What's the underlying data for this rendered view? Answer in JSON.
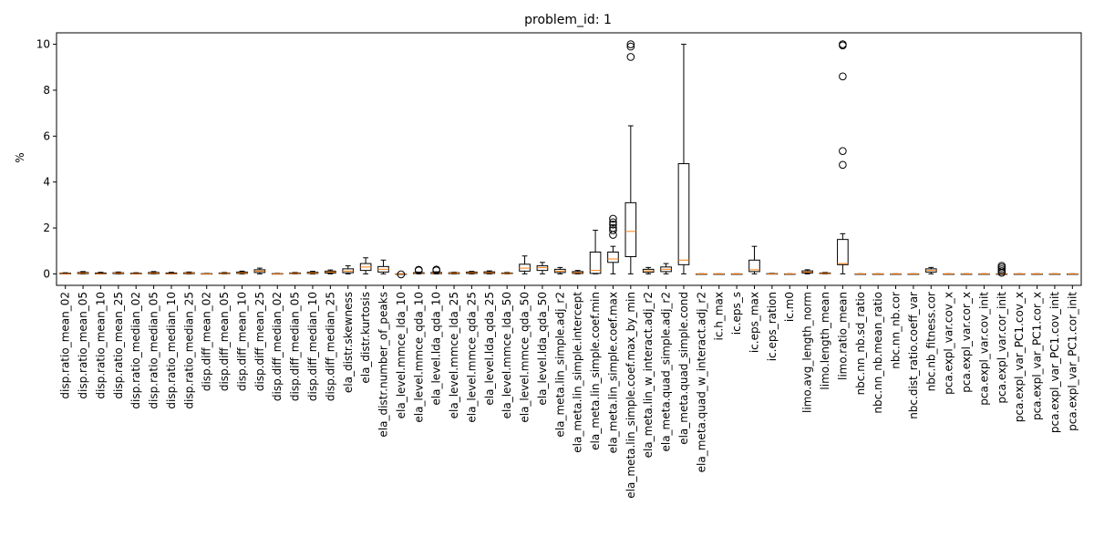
{
  "chart_data": {
    "type": "boxplot",
    "title": "problem_id: 1",
    "ylabel": "%",
    "xlabel": "",
    "ylim": [
      -0.5,
      10.5
    ],
    "yticks": [
      0,
      2,
      4,
      6,
      8,
      10
    ],
    "grid": false,
    "colors": {
      "box": "#000000",
      "median": "#ff7f0e",
      "flier": "#000000"
    },
    "categories": [
      "disp.ratio_mean_02",
      "disp.ratio_mean_05",
      "disp.ratio_mean_10",
      "disp.ratio_mean_25",
      "disp.ratio_median_02",
      "disp.ratio_median_05",
      "disp.ratio_median_10",
      "disp.ratio_median_25",
      "disp.diff_mean_02",
      "disp.diff_mean_05",
      "disp.diff_mean_10",
      "disp.diff_mean_25",
      "disp.diff_median_02",
      "disp.diff_median_05",
      "disp.diff_median_10",
      "disp.diff_median_25",
      "ela_distr.skewness",
      "ela_distr.kurtosis",
      "ela_distr.number_of_peaks",
      "ela_level.mmce_lda_10",
      "ela_level.mmce_qda_10",
      "ela_level.lda_qda_10",
      "ela_level.mmce_lda_25",
      "ela_level.mmce_qda_25",
      "ela_level.lda_qda_25",
      "ela_level.mmce_lda_50",
      "ela_level.mmce_qda_50",
      "ela_level.lda_qda_50",
      "ela_meta.lin_simple.adj_r2",
      "ela_meta.lin_simple.intercept",
      "ela_meta.lin_simple.coef.min",
      "ela_meta.lin_simple.coef.max",
      "ela_meta.lin_simple.coef.max_by_min",
      "ela_meta.lin_w_interact.adj_r2",
      "ela_meta.quad_simple.adj_r2",
      "ela_meta.quad_simple.cond",
      "ela_meta.quad_w_interact.adj_r2",
      "ic.h_max",
      "ic.eps_s",
      "ic.eps_max",
      "ic.eps_ration",
      "ic.m0",
      "limo.avg_length_norm",
      "limo.length_mean",
      "limo.ratio_mean",
      "nbc.nn_nb.sd_ratio",
      "nbc.nn_nb.mean_ratio",
      "nbc.nn_nb.cor",
      "nbc.dist_ratio.coeff_var",
      "nbc.nb_fitness.cor",
      "pca.expl_var.cov_x",
      "pca.expl_var.cor_x",
      "pca.expl_var.cov_init",
      "pca.expl_var.cor_init",
      "pca.expl_var_PC1.cov_x",
      "pca.expl_var_PC1.cor_x",
      "pca.expl_var_PC1.cov_init",
      "pca.expl_var_PC1.cor_init"
    ],
    "boxes": [
      {
        "min": 0,
        "q1": 0,
        "median": 0.01,
        "q3": 0.03,
        "max": 0.05,
        "fliers": []
      },
      {
        "min": 0,
        "q1": 0.01,
        "median": 0.03,
        "q3": 0.06,
        "max": 0.1,
        "fliers": []
      },
      {
        "min": 0,
        "q1": 0,
        "median": 0.01,
        "q3": 0.04,
        "max": 0.07,
        "fliers": []
      },
      {
        "min": 0,
        "q1": 0.01,
        "median": 0.03,
        "q3": 0.05,
        "max": 0.08,
        "fliers": []
      },
      {
        "min": 0,
        "q1": 0,
        "median": 0.01,
        "q3": 0.03,
        "max": 0.05,
        "fliers": []
      },
      {
        "min": 0,
        "q1": 0.01,
        "median": 0.03,
        "q3": 0.06,
        "max": 0.1,
        "fliers": []
      },
      {
        "min": 0,
        "q1": 0,
        "median": 0.01,
        "q3": 0.04,
        "max": 0.07,
        "fliers": []
      },
      {
        "min": 0,
        "q1": 0.01,
        "median": 0.03,
        "q3": 0.05,
        "max": 0.08,
        "fliers": []
      },
      {
        "min": 0,
        "q1": 0,
        "median": 0,
        "q3": 0.01,
        "max": 0.02,
        "fliers": []
      },
      {
        "min": 0,
        "q1": 0.01,
        "median": 0.02,
        "q3": 0.04,
        "max": 0.06,
        "fliers": []
      },
      {
        "min": 0,
        "q1": 0.02,
        "median": 0.04,
        "q3": 0.08,
        "max": 0.12,
        "fliers": []
      },
      {
        "min": 0,
        "q1": 0.06,
        "median": 0.12,
        "q3": 0.18,
        "max": 0.25,
        "fliers": []
      },
      {
        "min": 0,
        "q1": 0,
        "median": 0,
        "q3": 0.01,
        "max": 0.02,
        "fliers": []
      },
      {
        "min": 0,
        "q1": 0.01,
        "median": 0.02,
        "q3": 0.04,
        "max": 0.06,
        "fliers": []
      },
      {
        "min": 0,
        "q1": 0.02,
        "median": 0.04,
        "q3": 0.07,
        "max": 0.11,
        "fliers": []
      },
      {
        "min": 0,
        "q1": 0.04,
        "median": 0.08,
        "q3": 0.12,
        "max": 0.17,
        "fliers": []
      },
      {
        "min": 0,
        "q1": 0.05,
        "median": 0.12,
        "q3": 0.22,
        "max": 0.35,
        "fliers": []
      },
      {
        "min": 0,
        "q1": 0.15,
        "median": 0.3,
        "q3": 0.45,
        "max": 0.7,
        "fliers": []
      },
      {
        "min": 0,
        "q1": 0.08,
        "median": 0.2,
        "q3": 0.32,
        "max": 0.6,
        "fliers": []
      },
      {
        "min": 0,
        "q1": 0,
        "median": 0,
        "q3": 0,
        "max": 0,
        "fliers": [
          -0.02
        ]
      },
      {
        "min": 0,
        "q1": 0.01,
        "median": 0.02,
        "q3": 0.05,
        "max": 0.08,
        "fliers": [
          0.15,
          0.18
        ]
      },
      {
        "min": 0,
        "q1": 0.01,
        "median": 0.03,
        "q3": 0.06,
        "max": 0.09,
        "fliers": [
          0.15,
          0.19
        ]
      },
      {
        "min": 0,
        "q1": 0.01,
        "median": 0.03,
        "q3": 0.05,
        "max": 0.07,
        "fliers": []
      },
      {
        "min": 0,
        "q1": 0.02,
        "median": 0.05,
        "q3": 0.08,
        "max": 0.11,
        "fliers": []
      },
      {
        "min": 0,
        "q1": 0.02,
        "median": 0.05,
        "q3": 0.09,
        "max": 0.13,
        "fliers": []
      },
      {
        "min": 0,
        "q1": 0.01,
        "median": 0.02,
        "q3": 0.04,
        "max": 0.06,
        "fliers": []
      },
      {
        "min": 0,
        "q1": 0.12,
        "median": 0.25,
        "q3": 0.42,
        "max": 0.78,
        "fliers": []
      },
      {
        "min": 0,
        "q1": 0.15,
        "median": 0.27,
        "q3": 0.35,
        "max": 0.5,
        "fliers": []
      },
      {
        "min": 0,
        "q1": 0.06,
        "median": 0.12,
        "q3": 0.2,
        "max": 0.28,
        "fliers": []
      },
      {
        "min": 0,
        "q1": 0.02,
        "median": 0.05,
        "q3": 0.1,
        "max": 0.15,
        "fliers": []
      },
      {
        "min": 0,
        "q1": 0.02,
        "median": 0.15,
        "q3": 0.95,
        "max": 1.9,
        "fliers": []
      },
      {
        "min": 0,
        "q1": 0.5,
        "median": 0.65,
        "q3": 0.95,
        "max": 1.2,
        "fliers": [
          1.7,
          1.9,
          2.0,
          2.15,
          2.25,
          2.4
        ]
      },
      {
        "min": 0,
        "q1": 0.75,
        "median": 1.85,
        "q3": 3.1,
        "max": 6.45,
        "fliers": [
          9.45,
          9.9,
          10.0
        ]
      },
      {
        "min": 0,
        "q1": 0.07,
        "median": 0.13,
        "q3": 0.2,
        "max": 0.28,
        "fliers": []
      },
      {
        "min": 0,
        "q1": 0.1,
        "median": 0.2,
        "q3": 0.3,
        "max": 0.45,
        "fliers": []
      },
      {
        "min": 0,
        "q1": 0.4,
        "median": 0.6,
        "q3": 4.8,
        "max": 10.0,
        "fliers": []
      },
      {
        "min": 0,
        "q1": 0,
        "median": 0,
        "q3": 0,
        "max": 0,
        "fliers": []
      },
      {
        "min": 0,
        "q1": 0,
        "median": 0,
        "q3": 0,
        "max": 0,
        "fliers": []
      },
      {
        "min": 0,
        "q1": 0,
        "median": 0,
        "q3": 0,
        "max": 0,
        "fliers": []
      },
      {
        "min": 0,
        "q1": 0.1,
        "median": 0.18,
        "q3": 0.6,
        "max": 1.2,
        "fliers": []
      },
      {
        "min": 0,
        "q1": 0,
        "median": 0,
        "q3": 0.01,
        "max": 0.02,
        "fliers": []
      },
      {
        "min": 0,
        "q1": 0,
        "median": 0,
        "q3": 0,
        "max": 0,
        "fliers": []
      },
      {
        "min": 0,
        "q1": 0.04,
        "median": 0.08,
        "q3": 0.13,
        "max": 0.18,
        "fliers": []
      },
      {
        "min": 0,
        "q1": 0.01,
        "median": 0.02,
        "q3": 0.04,
        "max": 0.06,
        "fliers": []
      },
      {
        "min": 0,
        "q1": 0.4,
        "median": 0.45,
        "q3": 1.5,
        "max": 1.75,
        "fliers": [
          4.75,
          5.35,
          8.6,
          9.95,
          10.0
        ]
      },
      {
        "min": 0,
        "q1": 0,
        "median": 0,
        "q3": 0,
        "max": 0,
        "fliers": []
      },
      {
        "min": 0,
        "q1": 0,
        "median": 0,
        "q3": 0,
        "max": 0,
        "fliers": []
      },
      {
        "min": 0,
        "q1": 0,
        "median": 0,
        "q3": 0,
        "max": 0,
        "fliers": []
      },
      {
        "min": 0,
        "q1": 0,
        "median": 0,
        "q3": 0,
        "max": 0,
        "fliers": []
      },
      {
        "min": 0,
        "q1": 0.08,
        "median": 0.15,
        "q3": 0.22,
        "max": 0.28,
        "fliers": []
      },
      {
        "min": 0,
        "q1": 0,
        "median": 0,
        "q3": 0,
        "max": 0,
        "fliers": []
      },
      {
        "min": 0,
        "q1": 0,
        "median": 0,
        "q3": 0,
        "max": 0,
        "fliers": []
      },
      {
        "min": 0,
        "q1": 0,
        "median": 0,
        "q3": 0,
        "max": 0,
        "fliers": []
      },
      {
        "min": 0,
        "q1": 0,
        "median": 0,
        "q3": 0,
        "max": 0,
        "fliers": [
          0.05,
          0.12,
          0.2,
          0.28,
          0.35
        ]
      },
      {
        "min": 0,
        "q1": 0,
        "median": 0,
        "q3": 0,
        "max": 0,
        "fliers": []
      },
      {
        "min": 0,
        "q1": 0,
        "median": 0,
        "q3": 0,
        "max": 0,
        "fliers": []
      },
      {
        "min": 0,
        "q1": 0,
        "median": 0,
        "q3": 0,
        "max": 0,
        "fliers": []
      },
      {
        "min": 0,
        "q1": 0,
        "median": 0,
        "q3": 0,
        "max": 0,
        "fliers": []
      }
    ]
  }
}
